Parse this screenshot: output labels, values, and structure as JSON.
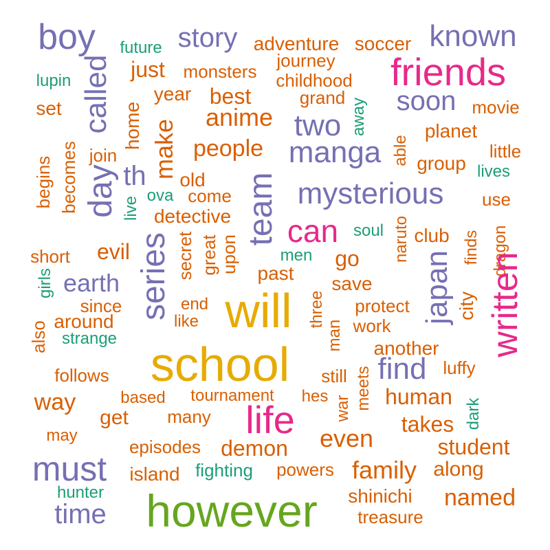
{
  "colors": {
    "orange": "#d95f02",
    "purple": "#7570b3",
    "pink": "#e7298a",
    "teal": "#1b9e77",
    "gold": "#e6ab02",
    "green": "#66a61e"
  },
  "words": [
    {
      "text": "boy",
      "color": "purple"
    },
    {
      "text": "future",
      "color": "teal"
    },
    {
      "text": "story",
      "color": "purple"
    },
    {
      "text": "adventure",
      "color": "orange"
    },
    {
      "text": "soccer",
      "color": "orange"
    },
    {
      "text": "known",
      "color": "purple"
    },
    {
      "text": "friends",
      "color": "pink"
    },
    {
      "text": "journey",
      "color": "orange"
    },
    {
      "text": "lupin",
      "color": "teal"
    },
    {
      "text": "called",
      "color": "purple"
    },
    {
      "text": "just",
      "color": "orange"
    },
    {
      "text": "monsters",
      "color": "orange"
    },
    {
      "text": "childhood",
      "color": "orange"
    },
    {
      "text": "year",
      "color": "orange"
    },
    {
      "text": "best",
      "color": "orange"
    },
    {
      "text": "grand",
      "color": "orange"
    },
    {
      "text": "soon",
      "color": "purple"
    },
    {
      "text": "movie",
      "color": "orange"
    },
    {
      "text": "set",
      "color": "orange"
    },
    {
      "text": "home",
      "color": "orange"
    },
    {
      "text": "away",
      "color": "teal"
    },
    {
      "text": "anime",
      "color": "orange"
    },
    {
      "text": "two",
      "color": "purple"
    },
    {
      "text": "planet",
      "color": "orange"
    },
    {
      "text": "becomes",
      "color": "orange"
    },
    {
      "text": "begins",
      "color": "orange"
    },
    {
      "text": "join",
      "color": "orange"
    },
    {
      "text": "make",
      "color": "orange"
    },
    {
      "text": "people",
      "color": "orange"
    },
    {
      "text": "manga",
      "color": "purple"
    },
    {
      "text": "able",
      "color": "orange"
    },
    {
      "text": "little",
      "color": "orange"
    },
    {
      "text": "group",
      "color": "orange"
    },
    {
      "text": "lives",
      "color": "teal"
    },
    {
      "text": "day",
      "color": "purple"
    },
    {
      "text": "th",
      "color": "purple"
    },
    {
      "text": "old",
      "color": "orange"
    },
    {
      "text": "team",
      "color": "purple"
    },
    {
      "text": "mysterious",
      "color": "purple"
    },
    {
      "text": "use",
      "color": "orange"
    },
    {
      "text": "ova",
      "color": "teal"
    },
    {
      "text": "come",
      "color": "orange"
    },
    {
      "text": "live",
      "color": "teal"
    },
    {
      "text": "detective",
      "color": "orange"
    },
    {
      "text": "can",
      "color": "pink"
    },
    {
      "text": "soul",
      "color": "teal"
    },
    {
      "text": "naruto",
      "color": "orange"
    },
    {
      "text": "club",
      "color": "orange"
    },
    {
      "text": "finds",
      "color": "orange"
    },
    {
      "text": "dragon",
      "color": "orange"
    },
    {
      "text": "short",
      "color": "orange"
    },
    {
      "text": "evil",
      "color": "orange"
    },
    {
      "text": "series",
      "color": "purple"
    },
    {
      "text": "secret",
      "color": "orange"
    },
    {
      "text": "great",
      "color": "orange"
    },
    {
      "text": "upon",
      "color": "orange"
    },
    {
      "text": "men",
      "color": "teal"
    },
    {
      "text": "go",
      "color": "orange"
    },
    {
      "text": "girls",
      "color": "teal"
    },
    {
      "text": "earth",
      "color": "purple"
    },
    {
      "text": "past",
      "color": "orange"
    },
    {
      "text": "save",
      "color": "orange"
    },
    {
      "text": "japan",
      "color": "purple"
    },
    {
      "text": "city",
      "color": "orange"
    },
    {
      "text": "written",
      "color": "pink"
    },
    {
      "text": "since",
      "color": "orange"
    },
    {
      "text": "end",
      "color": "orange"
    },
    {
      "text": "will",
      "color": "gold"
    },
    {
      "text": "protect",
      "color": "orange"
    },
    {
      "text": "three",
      "color": "orange"
    },
    {
      "text": "also",
      "color": "orange"
    },
    {
      "text": "around",
      "color": "orange"
    },
    {
      "text": "like",
      "color": "orange"
    },
    {
      "text": "work",
      "color": "orange"
    },
    {
      "text": "strange",
      "color": "teal"
    },
    {
      "text": "man",
      "color": "orange"
    },
    {
      "text": "another",
      "color": "orange"
    },
    {
      "text": "school",
      "color": "gold"
    },
    {
      "text": "find",
      "color": "purple"
    },
    {
      "text": "luffy",
      "color": "orange"
    },
    {
      "text": "follows",
      "color": "orange"
    },
    {
      "text": "still",
      "color": "orange"
    },
    {
      "text": "meets",
      "color": "orange"
    },
    {
      "text": "way",
      "color": "orange"
    },
    {
      "text": "based",
      "color": "orange"
    },
    {
      "text": "tournament",
      "color": "orange"
    },
    {
      "text": "hes",
      "color": "orange"
    },
    {
      "text": "war",
      "color": "orange"
    },
    {
      "text": "human",
      "color": "orange"
    },
    {
      "text": "dark",
      "color": "teal"
    },
    {
      "text": "get",
      "color": "orange"
    },
    {
      "text": "many",
      "color": "orange"
    },
    {
      "text": "life",
      "color": "pink"
    },
    {
      "text": "takes",
      "color": "orange"
    },
    {
      "text": "may",
      "color": "orange"
    },
    {
      "text": "even",
      "color": "orange"
    },
    {
      "text": "episodes",
      "color": "orange"
    },
    {
      "text": "student",
      "color": "orange"
    },
    {
      "text": "demon",
      "color": "orange"
    },
    {
      "text": "must",
      "color": "purple"
    },
    {
      "text": "family",
      "color": "orange"
    },
    {
      "text": "along",
      "color": "orange"
    },
    {
      "text": "island",
      "color": "orange"
    },
    {
      "text": "fighting",
      "color": "teal"
    },
    {
      "text": "powers",
      "color": "orange"
    },
    {
      "text": "hunter",
      "color": "teal"
    },
    {
      "text": "named",
      "color": "orange"
    },
    {
      "text": "shinichi",
      "color": "orange"
    },
    {
      "text": "time",
      "color": "purple"
    },
    {
      "text": "however",
      "color": "green"
    },
    {
      "text": "treasure",
      "color": "orange"
    }
  ]
}
